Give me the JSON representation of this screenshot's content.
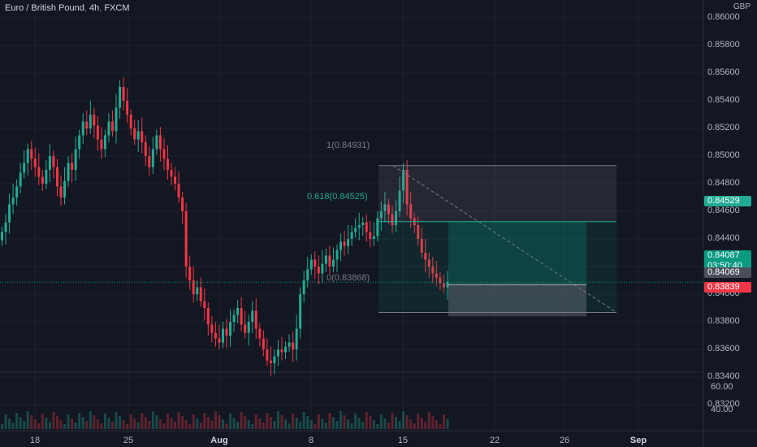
{
  "header": {
    "symbol": "Euro / British Pound",
    "interval": "4h",
    "exchange": "FXCM",
    "currency": "GBP"
  },
  "colors": {
    "background": "#131722",
    "grid": "#1e222d",
    "up": "#22ab94",
    "down": "#f23645",
    "axis_text": "#b2b5be"
  },
  "price_axis": {
    "labels": [
      "0.86000",
      "0.85800",
      "0.85600",
      "0.85400",
      "0.85200",
      "0.85000",
      "0.84800",
      "0.84600",
      "0.84400",
      "0.84200",
      "0.84000",
      "0.83800",
      "0.83600",
      "0.83400",
      "0.83200"
    ]
  },
  "volume_axis": {
    "labels": [
      "60.00",
      "40.00"
    ]
  },
  "time_axis": {
    "labels": [
      {
        "text": "18",
        "bold": false
      },
      {
        "text": "25",
        "bold": false
      },
      {
        "text": "Aug",
        "bold": true
      },
      {
        "text": "8",
        "bold": false
      },
      {
        "text": "15",
        "bold": false
      },
      {
        "text": "22",
        "bold": false
      },
      {
        "text": "26",
        "bold": false
      },
      {
        "text": "Sep",
        "bold": true
      }
    ]
  },
  "price_tags": {
    "target": "0.84529",
    "current": "0.84087",
    "countdown": "03:50:40",
    "entry": "0.84069",
    "stop": "0.83839"
  },
  "fibonacci": {
    "level_1": "1(0.84931)",
    "level_618": "0.618(0.84525)",
    "level_0": "0(0.83868)"
  },
  "chart_data": {
    "type": "candlestick",
    "instrument": "Euro / British Pound",
    "interval": "4h",
    "ylim": [
      0.832,
      0.861
    ],
    "last_price": 0.84087,
    "ohlc_close_approx": [
      0.8445,
      0.8452,
      0.8465,
      0.847,
      0.8478,
      0.8488,
      0.8495,
      0.8505,
      0.8498,
      0.8492,
      0.8485,
      0.848,
      0.849,
      0.85,
      0.8492,
      0.8478,
      0.847,
      0.8482,
      0.8495,
      0.849,
      0.8505,
      0.8515,
      0.8525,
      0.852,
      0.853,
      0.8522,
      0.8512,
      0.8505,
      0.8515,
      0.8525,
      0.8518,
      0.8535,
      0.855,
      0.854,
      0.853,
      0.852,
      0.8512,
      0.8518,
      0.851,
      0.85,
      0.8492,
      0.8505,
      0.8515,
      0.8505,
      0.8498,
      0.849,
      0.8485,
      0.848,
      0.847,
      0.846,
      0.842,
      0.841,
      0.84,
      0.8405,
      0.8395,
      0.839,
      0.8378,
      0.8372,
      0.8368,
      0.8365,
      0.8375,
      0.837,
      0.838,
      0.8385,
      0.839,
      0.8378,
      0.8372,
      0.838,
      0.8388,
      0.8375,
      0.8368,
      0.836,
      0.8352,
      0.835,
      0.8355,
      0.836,
      0.8358,
      0.8362,
      0.8365,
      0.836,
      0.8375,
      0.84,
      0.841,
      0.8418,
      0.8425,
      0.842,
      0.8415,
      0.8422,
      0.8428,
      0.842,
      0.8425,
      0.8432,
      0.8438,
      0.8435,
      0.844,
      0.8445,
      0.8448,
      0.845,
      0.8452,
      0.8445,
      0.844,
      0.8442,
      0.8455,
      0.846,
      0.8465,
      0.8458,
      0.845,
      0.846,
      0.8475,
      0.849,
      0.8465,
      0.8455,
      0.845,
      0.844,
      0.843,
      0.8425,
      0.842,
      0.8415,
      0.8412,
      0.8408,
      0.8405,
      0.8409
    ]
  }
}
